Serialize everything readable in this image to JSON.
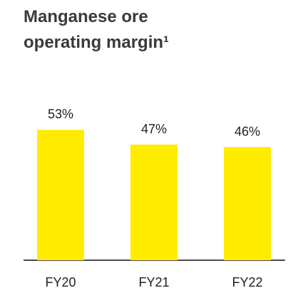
{
  "chart_data": {
    "type": "bar",
    "title": "Manganese ore operating margin¹",
    "categories": [
      "FY20",
      "FY21",
      "FY22"
    ],
    "values": [
      53,
      47,
      46
    ],
    "value_labels": [
      "53%",
      "47%",
      "46%"
    ],
    "color": "#ffec00"
  }
}
